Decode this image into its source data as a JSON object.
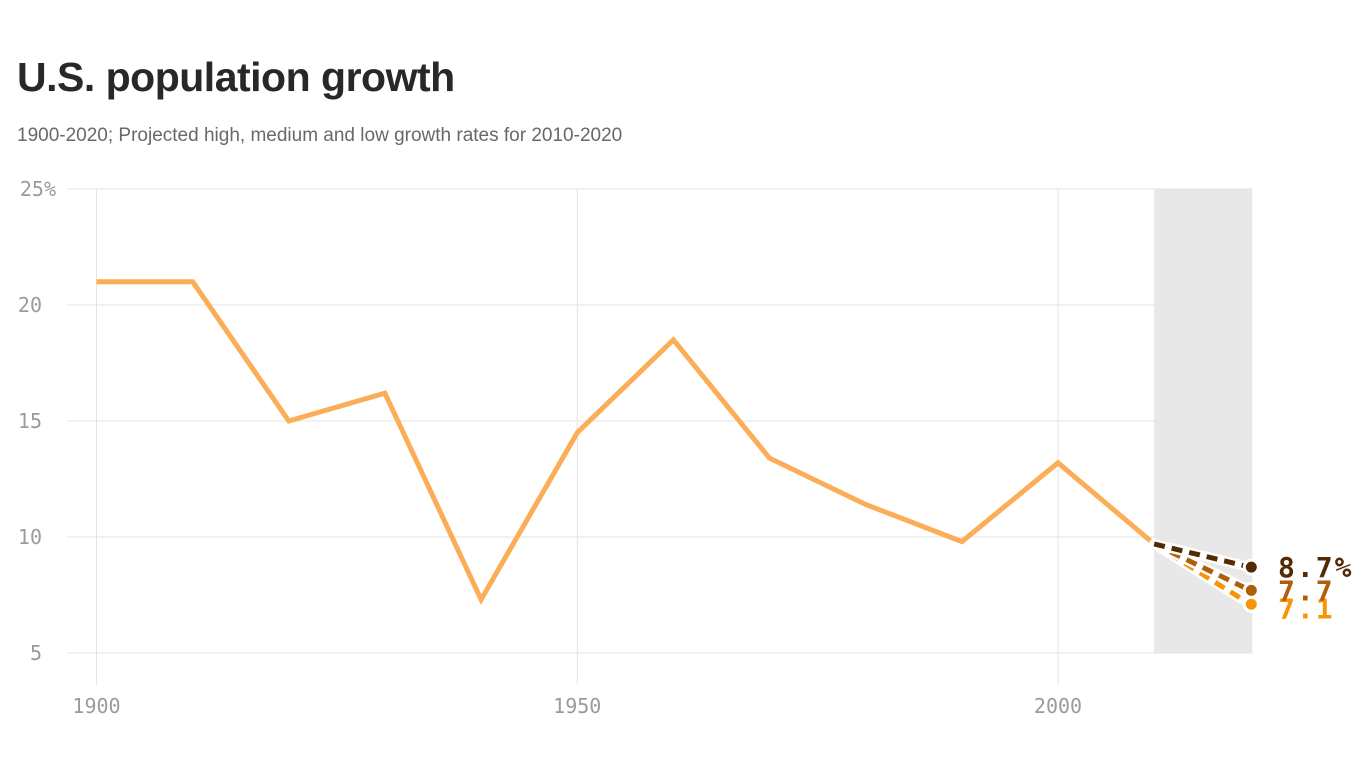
{
  "chart_data": {
    "type": "line",
    "title": "U.S. population growth",
    "subtitle": "1900-2020; Projected high, medium and low growth rates for 2010-2020",
    "xlabel": "",
    "ylabel": "",
    "xlim": [
      1900,
      2020
    ],
    "ylim": [
      5,
      25
    ],
    "grid": true,
    "legend": "none",
    "x": [
      1900,
      1910,
      1920,
      1930,
      1940,
      1950,
      1960,
      1970,
      1980,
      1990,
      2000,
      2010
    ],
    "series": [
      {
        "name": "decennial-growth-rate-percent",
        "color": "#fbae57",
        "values": [
          21.0,
          21.0,
          15.0,
          16.2,
          7.3,
          14.5,
          18.5,
          13.4,
          11.4,
          9.8,
          13.2,
          9.7
        ]
      }
    ],
    "projection_band": {
      "from": 2010,
      "to": 2020,
      "color": "#e8e8e9"
    },
    "projections": [
      {
        "name": "high",
        "x": [
          2010,
          2020
        ],
        "values": [
          9.7,
          8.7
        ],
        "label": "8.7%",
        "color": "#532a04"
      },
      {
        "name": "medium",
        "x": [
          2010,
          2020
        ],
        "values": [
          9.7,
          7.7
        ],
        "label": "7.7",
        "color": "#b05f08"
      },
      {
        "name": "low",
        "x": [
          2010,
          2020
        ],
        "values": [
          9.7,
          7.1
        ],
        "label": "7.1",
        "color": "#f89406"
      }
    ],
    "y_ticks": [
      {
        "value": 25,
        "label": "25%"
      },
      {
        "value": 20,
        "label": "20"
      },
      {
        "value": 15,
        "label": "15"
      },
      {
        "value": 10,
        "label": "10"
      },
      {
        "value": 5,
        "label": "5"
      }
    ],
    "x_ticks": [
      {
        "value": 1900,
        "label": "1900"
      },
      {
        "value": 1950,
        "label": "1950"
      },
      {
        "value": 2000,
        "label": "2000"
      }
    ],
    "colors": {
      "grid": "#e3e3e3",
      "tick_text": "#9b9b9b",
      "title_text": "#282828",
      "subtitle_text": "#686868",
      "background": "#ffffff"
    }
  }
}
